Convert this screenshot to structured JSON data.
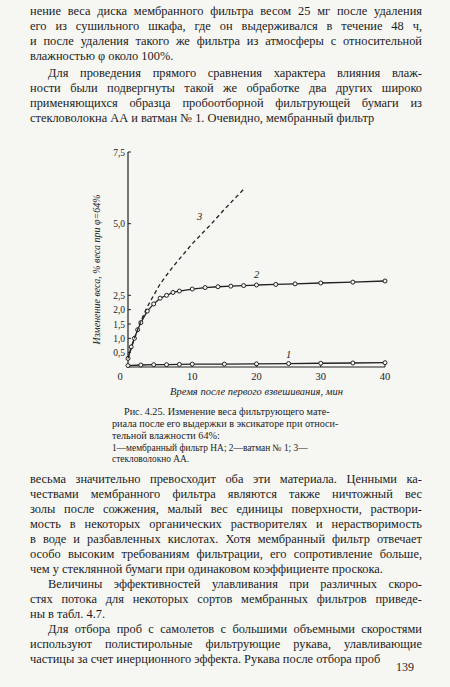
{
  "paragraphs_top": [
    {
      "lines": [
        "нение веса диска мембранного фильтра весом 25 мг после удаления",
        "его из сушильного шкафа, где он выдерживался в течение 48 ч,",
        "и после удаления такого же фильтра из атмосферы с относительной",
        "влажностью φ около 100%."
      ]
    },
    {
      "lines": [
        "Для проведения прямого сравнения характера влияния влаж-",
        "ности были подвергнуты такой же обработке два других широко",
        "применяющихся образца пробоотборной фильтрующей бумаги из",
        "стекловолокна АА и ватман № 1. Очевидно, мембранный фильтр"
      ]
    }
  ],
  "chart_data": {
    "type": "line",
    "x_label": "Время после первого взвешивания, мин",
    "y_label": "Изменение веса, % веса при φ=64%",
    "xlim": [
      0,
      40
    ],
    "xticks": [
      0,
      10,
      20,
      30,
      40
    ],
    "ylim": [
      0,
      7.5
    ],
    "yticks": [
      {
        "value": 0.5,
        "label": "0,5"
      },
      {
        "value": 1.0,
        "label": "1,0"
      },
      {
        "value": 1.5,
        "label": "1,5"
      },
      {
        "value": 2.0,
        "label": "2,0"
      },
      {
        "value": 2.5,
        "label": "2,5"
      },
      {
        "value": 5.0,
        "label": "5,0"
      },
      {
        "value": 7.5,
        "label": "7,5"
      }
    ],
    "grid": false,
    "series": [
      {
        "name": "мембранный фильтр НА",
        "label": "1",
        "color": "#222222",
        "marker": "circle",
        "line_style": "solid",
        "x": [
          0,
          2,
          4,
          6,
          8,
          10,
          15,
          20,
          25,
          30,
          35,
          40
        ],
        "values": [
          0.05,
          0.07,
          0.08,
          0.08,
          0.09,
          0.1,
          0.1,
          0.11,
          0.12,
          0.13,
          0.14,
          0.15
        ]
      },
      {
        "name": "ватман № 1",
        "label": "2",
        "color": "#222222",
        "marker": "circle",
        "line_style": "solid",
        "x": [
          0,
          0.5,
          1,
          1.5,
          2,
          3,
          4,
          5,
          6,
          7,
          8,
          10,
          12,
          14,
          16,
          18,
          20,
          23,
          26,
          30,
          35,
          40
        ],
        "values": [
          0.3,
          0.7,
          1.0,
          1.3,
          1.55,
          1.95,
          2.2,
          2.4,
          2.5,
          2.6,
          2.65,
          2.72,
          2.77,
          2.8,
          2.82,
          2.84,
          2.86,
          2.88,
          2.9,
          2.93,
          2.96,
          3.0
        ]
      },
      {
        "name": "стекловолокно АА",
        "label": "3",
        "color": "#222222",
        "marker": "none",
        "line_style": "dashed",
        "x": [
          0,
          1,
          2,
          3,
          4,
          5,
          7,
          10,
          13,
          15,
          18
        ],
        "values": [
          0.3,
          1.0,
          1.6,
          2.1,
          2.5,
          2.9,
          3.5,
          4.3,
          5.0,
          5.5,
          6.2
        ]
      }
    ]
  },
  "caption": {
    "lines": [
      "Рис. 4.25. Изменение веса фильтрующего мате-",
      "риала после его выдержки в эксикаторе при относи-",
      "тельной влажности 64%:"
    ],
    "legend_separator": "—",
    "legend_delimiter": "; ",
    "legend_end": "."
  },
  "paragraphs_bottom": [
    {
      "lines": [
        "весьма значительно превосходит оба эти материала. Ценными ка-",
        "чествами мембранного фильтра являются также ничтожный вес",
        "золы после сожжения, малый вес единицы поверхности, раствори-",
        "мость в некоторых органических растворителях и нерастворимость",
        "в воде и разбавленных кислотах. Хотя мембранный фильтр отвечает",
        "особо высоким требованиям фильтрации, его сопротивление больше,",
        "чем у стеклянной бумаги при одинаковом коэффициенте проскока."
      ]
    },
    {
      "lines": [
        "Величины эффективностей улавливания при различных скоро-",
        "стях потока для некоторых сортов мембранных фильтров приведе-",
        "ны в табл. 4.7."
      ]
    },
    {
      "lines": [
        "Для отбора проб с самолетов с большими объемными скоростями",
        "используют полистирольные фильтрующие рукава, улавливающие",
        "частицы за счет инерционного эффекта. Рукава после отбора проб"
      ]
    }
  ],
  "page_number": "139"
}
